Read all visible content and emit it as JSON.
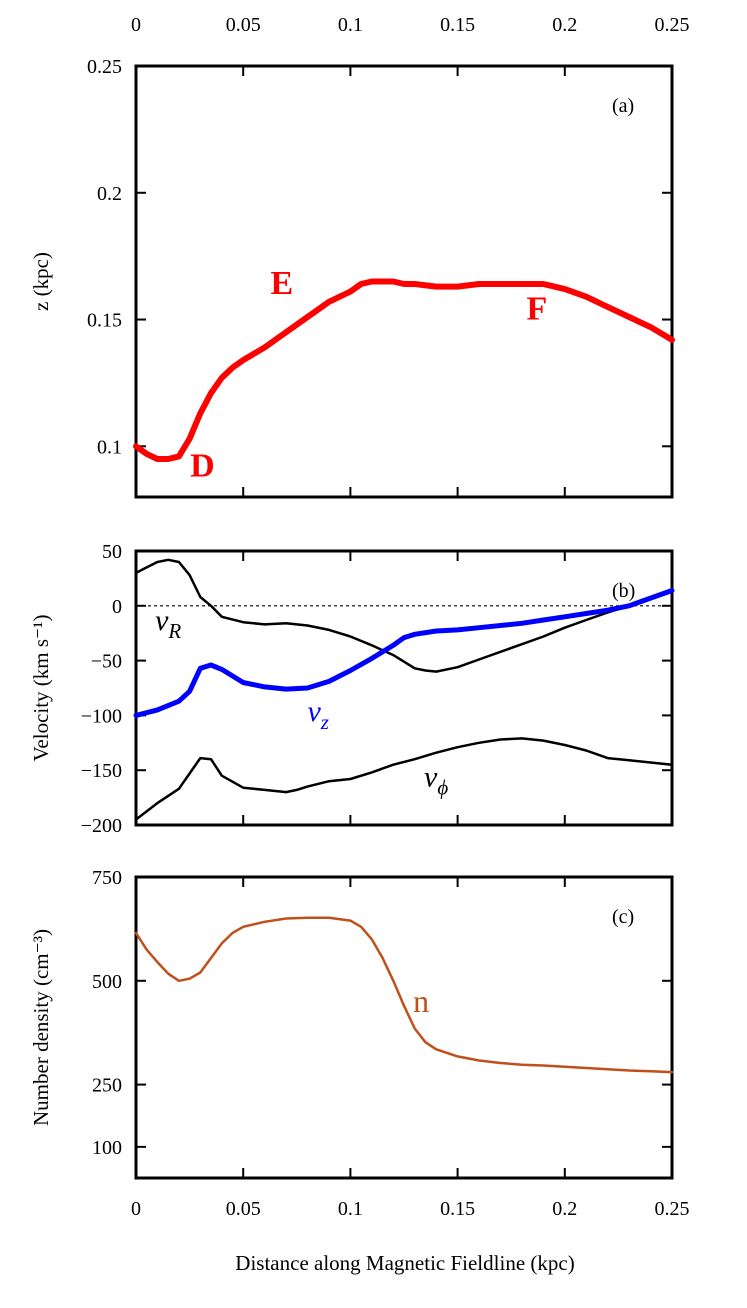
{
  "chart_data": [
    {
      "id": "a",
      "type": "line",
      "panel_label": "(a)",
      "ylabel": "z (kpc)",
      "xlim": [
        0,
        0.25
      ],
      "ylim": [
        0.08,
        0.25
      ],
      "yticks": [
        0.1,
        0.15,
        0.2,
        0.25
      ],
      "ytick_labels": [
        "0.1",
        "0.15",
        "0.2",
        "0.25"
      ],
      "series": [
        {
          "color": "#ff0000",
          "width": 6,
          "x": [
            0,
            0.005,
            0.01,
            0.015,
            0.02,
            0.025,
            0.03,
            0.035,
            0.04,
            0.045,
            0.05,
            0.06,
            0.07,
            0.08,
            0.09,
            0.1,
            0.105,
            0.11,
            0.115,
            0.12,
            0.125,
            0.13,
            0.14,
            0.15,
            0.16,
            0.17,
            0.18,
            0.19,
            0.2,
            0.21,
            0.22,
            0.23,
            0.24,
            0.25
          ],
          "y": [
            0.1,
            0.097,
            0.095,
            0.095,
            0.096,
            0.103,
            0.113,
            0.121,
            0.127,
            0.131,
            0.134,
            0.139,
            0.145,
            0.151,
            0.157,
            0.161,
            0.164,
            0.165,
            0.165,
            0.165,
            0.164,
            0.164,
            0.163,
            0.163,
            0.164,
            0.164,
            0.164,
            0.164,
            0.162,
            0.159,
            0.155,
            0.151,
            0.147,
            0.142
          ]
        }
      ],
      "annotations": [
        {
          "text": "D",
          "x": 0.031,
          "y": 0.088,
          "color": "#ff0000"
        },
        {
          "text": "E",
          "x": 0.068,
          "y": 0.16,
          "color": "#ff0000"
        },
        {
          "text": "F",
          "x": 0.187,
          "y": 0.15,
          "color": "#ff0000"
        }
      ]
    },
    {
      "id": "b",
      "type": "line",
      "panel_label": "(b)",
      "ylabel": "Velocity (km s⁻¹)",
      "xlim": [
        0,
        0.25
      ],
      "ylim": [
        -200,
        50
      ],
      "yticks": [
        -200,
        -150,
        -100,
        -50,
        0,
        50
      ],
      "ytick_labels": [
        "−200",
        "−150",
        "−100",
        "−50",
        "0",
        "50"
      ],
      "reference_line": {
        "y": 0,
        "style": "dotted"
      },
      "series": [
        {
          "color": "#000000",
          "width": 2.5,
          "x": [
            0,
            0.005,
            0.01,
            0.015,
            0.02,
            0.025,
            0.03,
            0.035,
            0.04,
            0.05,
            0.06,
            0.07,
            0.08,
            0.09,
            0.1,
            0.11,
            0.12,
            0.13,
            0.135,
            0.14,
            0.15,
            0.16,
            0.17,
            0.18,
            0.19,
            0.2,
            0.21,
            0.22,
            0.23,
            0.24,
            0.25
          ],
          "y": [
            30,
            35,
            40,
            42,
            40,
            28,
            8,
            0,
            -10,
            -15,
            -17,
            -16,
            -18,
            -22,
            -28,
            -36,
            -45,
            -57,
            -59,
            -60,
            -56,
            -49,
            -42,
            -35,
            -28,
            -20,
            -13,
            -6,
            0,
            7,
            15
          ]
        },
        {
          "color": "#0000ff",
          "width": 5,
          "x": [
            0,
            0.01,
            0.02,
            0.025,
            0.03,
            0.035,
            0.04,
            0.05,
            0.06,
            0.07,
            0.08,
            0.09,
            0.1,
            0.11,
            0.12,
            0.125,
            0.13,
            0.14,
            0.15,
            0.16,
            0.17,
            0.18,
            0.19,
            0.2,
            0.21,
            0.22,
            0.23,
            0.24,
            0.25
          ],
          "y": [
            -100,
            -95,
            -87,
            -78,
            -57,
            -54,
            -58,
            -70,
            -74,
            -76,
            -75,
            -69,
            -59,
            -48,
            -36,
            -29,
            -26,
            -23,
            -22,
            -20,
            -18,
            -16,
            -13,
            -10,
            -7,
            -4,
            0,
            7,
            14
          ]
        },
        {
          "color": "#000000",
          "width": 2.5,
          "x": [
            0,
            0.01,
            0.02,
            0.025,
            0.03,
            0.035,
            0.04,
            0.05,
            0.06,
            0.07,
            0.075,
            0.08,
            0.09,
            0.1,
            0.11,
            0.12,
            0.13,
            0.14,
            0.15,
            0.16,
            0.17,
            0.18,
            0.19,
            0.2,
            0.21,
            0.22,
            0.23,
            0.24,
            0.25
          ],
          "y": [
            -195,
            -180,
            -167,
            -153,
            -139,
            -140,
            -155,
            -166,
            -168,
            -170,
            -168,
            -165,
            -160,
            -158,
            -152,
            -145,
            -140,
            -134,
            -129,
            -125,
            -122,
            -121,
            -123,
            -127,
            -132,
            -139,
            -141,
            -143,
            -145
          ]
        }
      ],
      "annotations": [
        {
          "text": "v",
          "sub": "R",
          "x": 0.015,
          "y": -22,
          "color": "#000000"
        },
        {
          "text": "v",
          "sub": "z",
          "x": 0.085,
          "y": -105,
          "color": "#0000ff"
        },
        {
          "text": "v",
          "sub": "ϕ",
          "x": 0.14,
          "y": -165,
          "color": "#000000"
        }
      ]
    },
    {
      "id": "c",
      "type": "line",
      "panel_label": "(c)",
      "ylabel": "Number density (cm⁻³)",
      "xlabel": "Distance along Magnetic Fieldline (kpc)",
      "xlim": [
        0,
        0.25
      ],
      "ylim": [
        25,
        750
      ],
      "yticks": [
        100,
        250,
        500,
        750
      ],
      "ytick_labels": [
        "100",
        "250",
        "500",
        "750"
      ],
      "series": [
        {
          "color": "#c0501a",
          "width": 2.5,
          "x": [
            0,
            0.005,
            0.01,
            0.015,
            0.02,
            0.025,
            0.03,
            0.035,
            0.04,
            0.045,
            0.05,
            0.06,
            0.07,
            0.08,
            0.09,
            0.1,
            0.105,
            0.11,
            0.115,
            0.12,
            0.125,
            0.13,
            0.135,
            0.14,
            0.15,
            0.16,
            0.17,
            0.18,
            0.19,
            0.2,
            0.21,
            0.22,
            0.23,
            0.24,
            0.25
          ],
          "y": [
            615,
            575,
            545,
            517,
            500,
            505,
            520,
            555,
            590,
            615,
            630,
            642,
            650,
            652,
            652,
            645,
            630,
            600,
            555,
            500,
            440,
            385,
            352,
            335,
            318,
            308,
            302,
            298,
            296,
            293,
            290,
            287,
            284,
            282,
            280
          ]
        }
      ],
      "annotations": [
        {
          "text": "n",
          "x": 0.133,
          "y": 425,
          "color": "#c0501a"
        }
      ]
    }
  ],
  "x_axis": {
    "ticks": [
      0,
      0.05,
      0.1,
      0.15,
      0.2,
      0.25
    ],
    "tick_labels": [
      "0",
      "0.05",
      "0.1",
      "0.15",
      "0.2",
      "0.25"
    ],
    "label": "Distance along Magnetic Fieldline (kpc)"
  }
}
